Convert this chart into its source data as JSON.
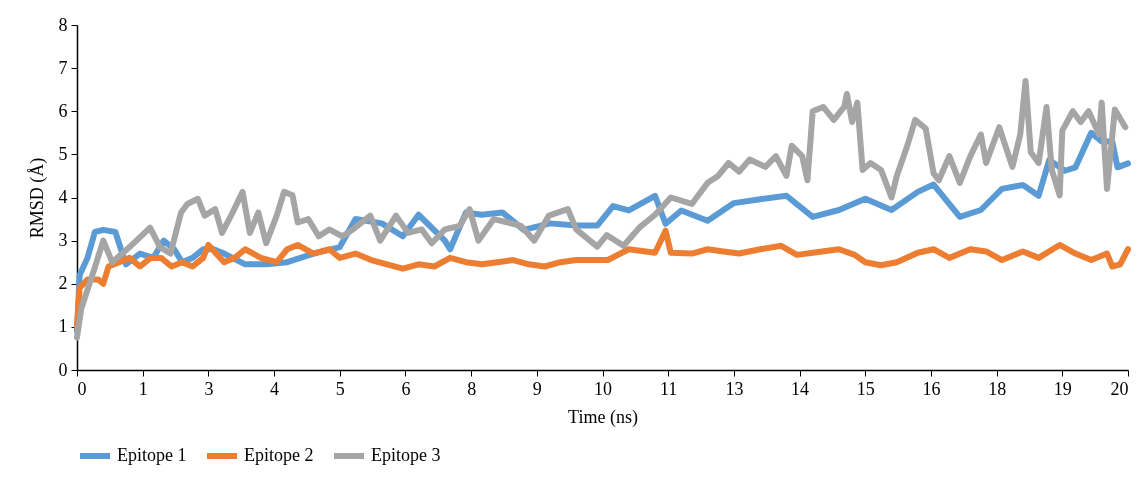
{
  "chart_data": {
    "type": "line",
    "xlabel": "Time (ns)",
    "ylabel": "RMSD (Å)",
    "xlim": [
      0,
      20
    ],
    "xticks": [
      0,
      {
        "value": 1.25,
        "label": "1"
      },
      {
        "value": 2.5,
        "label": "3"
      },
      {
        "value": 3.75,
        "label": "4"
      },
      5,
      {
        "value": 6.25,
        "label": "6"
      },
      {
        "value": 7.5,
        "label": "8"
      },
      {
        "value": 8.75,
        "label": "9"
      },
      10,
      {
        "value": 11.25,
        "label": "11"
      },
      {
        "value": 12.5,
        "label": "13"
      },
      {
        "value": 13.75,
        "label": "14"
      },
      15,
      {
        "value": 16.25,
        "label": "16"
      },
      {
        "value": 17.5,
        "label": "18"
      },
      {
        "value": 18.75,
        "label": "19"
      },
      20
    ],
    "ylim": [
      0,
      8
    ],
    "yticks": [
      0,
      1,
      2,
      3,
      4,
      5,
      6,
      7,
      8
    ],
    "grid": false,
    "legend": "bottom",
    "marker": "none",
    "line_style": "solid",
    "series": [
      {
        "name": "Epitope 1",
        "color": "#5b9bd5",
        "x": [
          0,
          0.05,
          0.2,
          0.34,
          0.5,
          0.73,
          0.93,
          1.2,
          1.45,
          1.65,
          1.85,
          2.0,
          2.2,
          2.4,
          2.6,
          2.8,
          3.2,
          3.6,
          4.0,
          4.5,
          5.0,
          5.3,
          5.8,
          6.2,
          6.5,
          7.0,
          7.1,
          7.4,
          7.7,
          8.1,
          8.5,
          9.0,
          9.5,
          9.9,
          10.2,
          10.5,
          11.0,
          11.2,
          11.5,
          12.0,
          12.5,
          13.0,
          13.5,
          14.0,
          14.5,
          15.0,
          15.5,
          16.0,
          16.3,
          16.8,
          17.2,
          17.6,
          18.0,
          18.3,
          18.5,
          18.8,
          19.0,
          19.3,
          19.5,
          19.7,
          19.8,
          20.0
        ],
        "values": [
          0.9,
          2.2,
          2.6,
          3.2,
          3.25,
          3.2,
          2.45,
          2.7,
          2.6,
          3.0,
          2.8,
          2.5,
          2.6,
          2.8,
          2.8,
          2.7,
          2.45,
          2.45,
          2.5,
          2.7,
          2.85,
          3.5,
          3.4,
          3.1,
          3.6,
          3.0,
          2.8,
          3.65,
          3.6,
          3.65,
          3.25,
          3.4,
          3.35,
          3.35,
          3.8,
          3.7,
          4.04,
          3.39,
          3.7,
          3.46,
          3.87,
          3.96,
          4.04,
          3.55,
          3.71,
          3.97,
          3.71,
          4.13,
          4.3,
          3.55,
          3.71,
          4.2,
          4.29,
          4.04,
          4.87,
          4.62,
          4.7,
          5.5,
          5.3,
          5.3,
          4.7,
          4.79
        ]
      },
      {
        "name": "Epitope 2",
        "color": "#ed7d31",
        "x": [
          0,
          0.05,
          0.2,
          0.4,
          0.5,
          0.6,
          0.8,
          1.0,
          1.2,
          1.4,
          1.6,
          1.8,
          2.0,
          2.2,
          2.4,
          2.5,
          2.8,
          3.0,
          3.2,
          3.5,
          3.8,
          4.0,
          4.2,
          4.5,
          4.8,
          5.0,
          5.3,
          5.6,
          5.9,
          6.2,
          6.5,
          6.8,
          7.1,
          7.4,
          7.7,
          8.0,
          8.3,
          8.6,
          8.9,
          9.2,
          9.5,
          9.8,
          10.1,
          10.5,
          11.0,
          11.2,
          11.3,
          11.7,
          12.0,
          12.3,
          12.6,
          13.0,
          13.4,
          13.7,
          14.0,
          14.5,
          14.8,
          15.0,
          15.3,
          15.6,
          16.0,
          16.3,
          16.6,
          17.0,
          17.3,
          17.6,
          18.0,
          18.3,
          18.7,
          19.0,
          19.3,
          19.6,
          19.7,
          19.85,
          20.0
        ],
        "values": [
          1.0,
          1.9,
          2.1,
          2.1,
          2.0,
          2.4,
          2.5,
          2.6,
          2.4,
          2.6,
          2.6,
          2.4,
          2.5,
          2.4,
          2.6,
          2.9,
          2.5,
          2.6,
          2.8,
          2.6,
          2.5,
          2.8,
          2.9,
          2.7,
          2.8,
          2.6,
          2.7,
          2.55,
          2.45,
          2.35,
          2.45,
          2.4,
          2.6,
          2.5,
          2.45,
          2.5,
          2.55,
          2.45,
          2.4,
          2.5,
          2.55,
          2.55,
          2.55,
          2.8,
          2.72,
          3.23,
          2.72,
          2.7,
          2.8,
          2.75,
          2.7,
          2.8,
          2.88,
          2.67,
          2.72,
          2.8,
          2.67,
          2.5,
          2.43,
          2.5,
          2.72,
          2.8,
          2.6,
          2.8,
          2.75,
          2.55,
          2.75,
          2.6,
          2.9,
          2.7,
          2.55,
          2.7,
          2.4,
          2.45,
          2.8
        ]
      },
      {
        "name": "Epitope 3",
        "color": "#a5a5a5",
        "x": [
          0,
          0.08,
          0.34,
          0.5,
          0.67,
          1.0,
          1.39,
          1.58,
          1.78,
          1.98,
          2.1,
          2.3,
          2.43,
          2.63,
          2.76,
          2.96,
          3.15,
          3.29,
          3.45,
          3.6,
          3.8,
          3.94,
          4.1,
          4.2,
          4.4,
          4.6,
          4.8,
          5.05,
          5.25,
          5.58,
          5.77,
          6.07,
          6.3,
          6.56,
          6.75,
          7.0,
          7.28,
          7.47,
          7.64,
          7.93,
          8.2,
          8.45,
          8.7,
          8.98,
          9.34,
          9.5,
          9.9,
          10.08,
          10.4,
          10.7,
          11.0,
          11.3,
          11.7,
          12.0,
          12.2,
          12.4,
          12.6,
          12.8,
          13.1,
          13.3,
          13.5,
          13.6,
          13.8,
          13.9,
          14.0,
          14.2,
          14.4,
          14.6,
          14.65,
          14.75,
          14.85,
          14.95,
          15.1,
          15.3,
          15.5,
          15.6,
          15.8,
          15.95,
          16.15,
          16.3,
          16.4,
          16.6,
          16.8,
          17.0,
          17.2,
          17.3,
          17.55,
          17.8,
          17.95,
          18.05,
          18.15,
          18.3,
          18.45,
          18.55,
          18.7,
          18.75,
          18.95,
          19.1,
          19.25,
          19.45,
          19.5,
          19.6,
          19.75,
          19.95
        ],
        "values": [
          0.75,
          1.42,
          2.38,
          3.0,
          2.5,
          2.85,
          3.3,
          2.85,
          2.7,
          3.65,
          3.85,
          3.97,
          3.58,
          3.73,
          3.18,
          3.65,
          4.13,
          3.18,
          3.65,
          2.94,
          3.58,
          4.13,
          4.05,
          3.42,
          3.5,
          3.1,
          3.26,
          3.1,
          3.26,
          3.58,
          3.0,
          3.58,
          3.18,
          3.26,
          2.94,
          3.26,
          3.34,
          3.73,
          3.0,
          3.5,
          3.42,
          3.34,
          3.0,
          3.58,
          3.73,
          3.26,
          2.86,
          3.13,
          2.88,
          3.3,
          3.6,
          4.0,
          3.85,
          4.34,
          4.5,
          4.8,
          4.6,
          4.88,
          4.71,
          4.96,
          4.5,
          5.2,
          4.96,
          4.4,
          6.0,
          6.1,
          5.8,
          6.1,
          6.4,
          5.75,
          6.2,
          4.64,
          4.8,
          4.64,
          4.0,
          4.5,
          5.2,
          5.8,
          5.6,
          4.56,
          4.4,
          4.96,
          4.34,
          4.96,
          5.46,
          4.8,
          5.63,
          4.71,
          5.46,
          6.7,
          5.05,
          4.8,
          6.1,
          4.64,
          4.05,
          5.55,
          6.0,
          5.75,
          6.0,
          5.46,
          6.2,
          4.2,
          6.04,
          5.63
        ]
      }
    ]
  }
}
